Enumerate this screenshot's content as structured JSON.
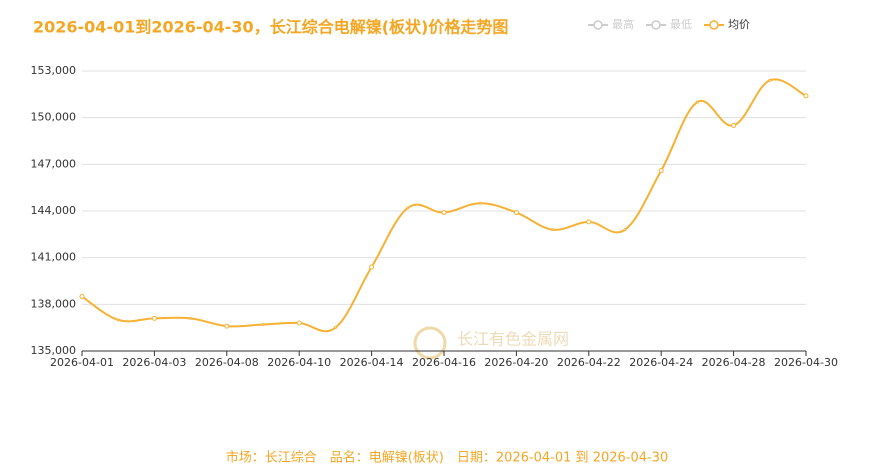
{
  "chart_data": {
    "type": "line",
    "title": "2026-04-01到2026-04-30，长江综合电解镍(板状)价格走势图",
    "categories": [
      "2026-04-01",
      null,
      "2026-04-03",
      null,
      "2026-04-08",
      null,
      "2026-04-10",
      null,
      "2026-04-14",
      null,
      "2026-04-16",
      null,
      "2026-04-20",
      null,
      "2026-04-22",
      null,
      "2026-04-24",
      null,
      "2026-04-28",
      null,
      "2026-04-30"
    ],
    "series": [
      {
        "name": "均价",
        "color": "#f8b133",
        "values": [
          138500,
          137000,
          137100,
          137100,
          136600,
          136700,
          136800,
          136500,
          140400,
          144200,
          143900,
          144500,
          143900,
          142800,
          143300,
          142800,
          146600,
          151000,
          149500,
          152400,
          151400
        ]
      }
    ],
    "hidden_series": [
      "最高",
      "最低"
    ],
    "ylim": [
      135000,
      153000
    ],
    "yticks": [
      {
        "value": 135000,
        "label": "135,000"
      },
      {
        "value": 138000,
        "label": "138,000"
      },
      {
        "value": 141000,
        "label": "141,000"
      },
      {
        "value": 144000,
        "label": "144,000"
      },
      {
        "value": 147000,
        "label": "147,000"
      },
      {
        "value": 150000,
        "label": "150,000"
      },
      {
        "value": 153000,
        "label": "153,000"
      }
    ],
    "grid": true,
    "watermark": "长江有色金属网",
    "footer": "市场：长江综合　品名：电解镍(板状)　日期：2026-04-01 到 2026-04-30"
  }
}
